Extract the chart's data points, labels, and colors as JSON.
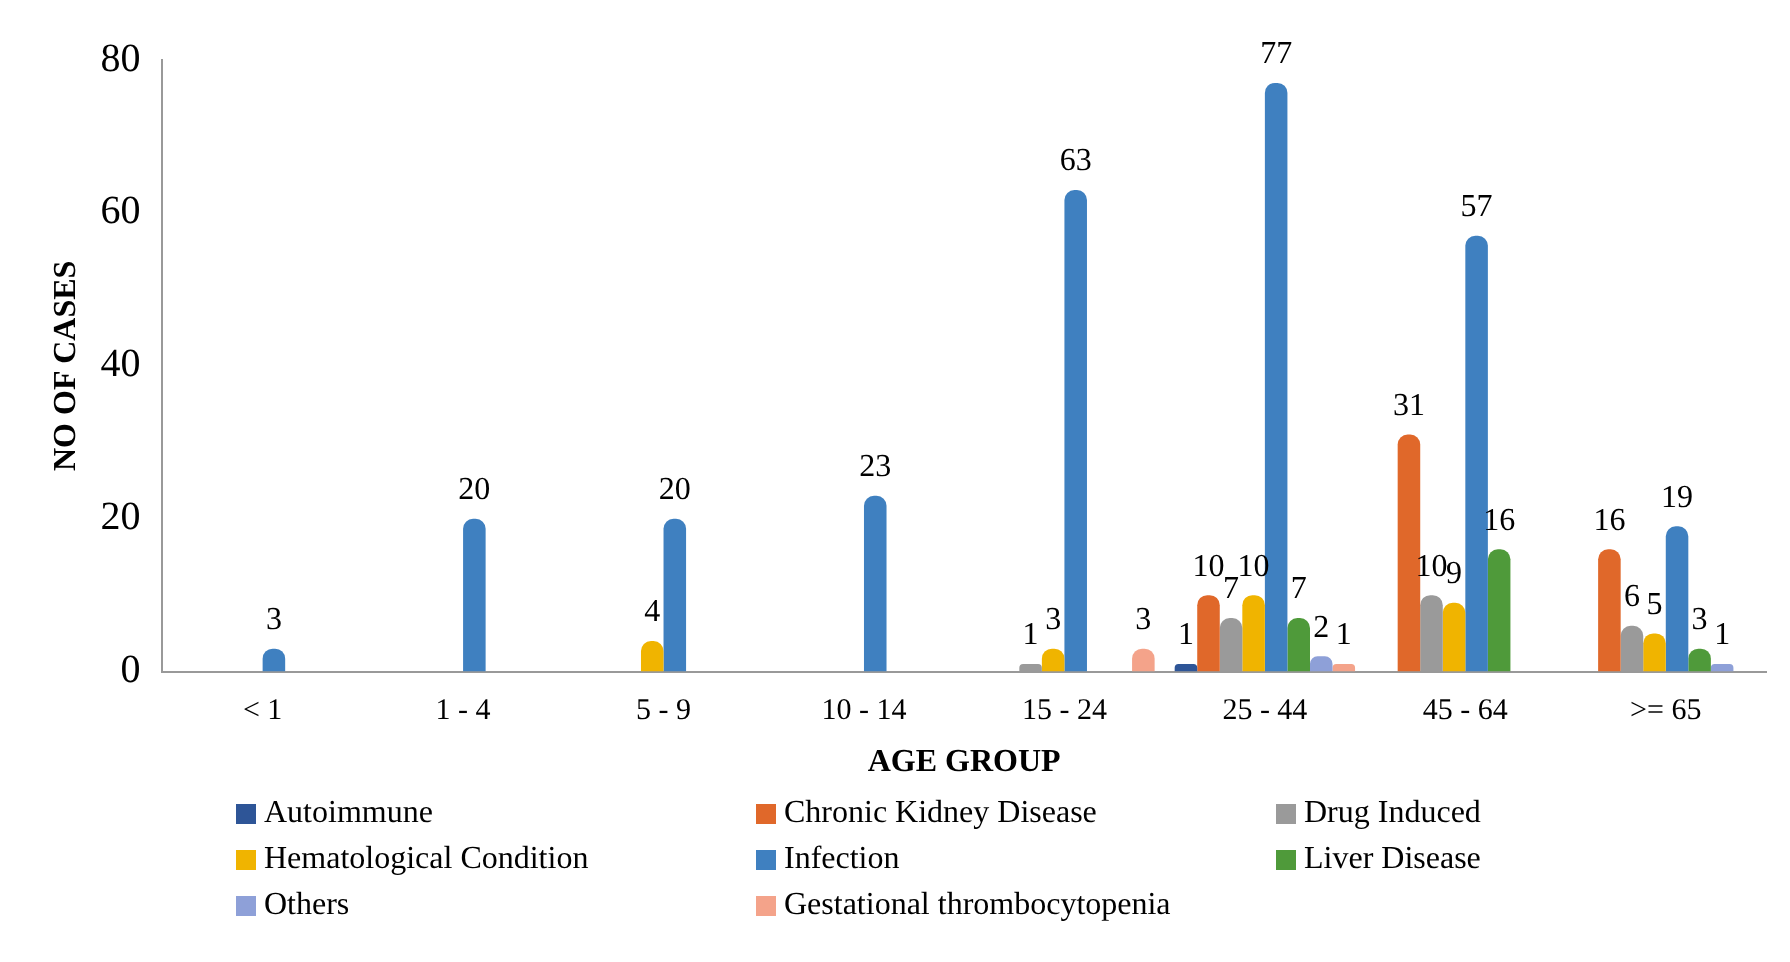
{
  "chart_data": {
    "type": "bar",
    "xlabel": "AGE GROUP",
    "ylabel": "NO OF CASES",
    "categories": [
      "< 1",
      "1 - 4",
      "5 - 9",
      "10 - 14",
      "15 - 24",
      "25 - 44",
      "45 - 64",
      ">= 65"
    ],
    "series": [
      {
        "name": "Autoimmune",
        "color": "#2e5597",
        "values": [
          null,
          null,
          null,
          null,
          null,
          1,
          null,
          null
        ]
      },
      {
        "name": "Chronic Kidney Disease",
        "color": "#e0682a",
        "values": [
          null,
          null,
          null,
          null,
          null,
          10,
          31,
          16
        ]
      },
      {
        "name": "Drug Induced",
        "color": "#9a9a9a",
        "values": [
          null,
          null,
          null,
          null,
          1,
          7,
          10,
          6
        ]
      },
      {
        "name": "Hematological Condition",
        "color": "#f0b400",
        "values": [
          null,
          null,
          4,
          null,
          3,
          10,
          9,
          5
        ]
      },
      {
        "name": "Infection",
        "color": "#3f80c0",
        "values": [
          3,
          20,
          20,
          23,
          63,
          77,
          57,
          19
        ]
      },
      {
        "name": "Liver Disease",
        "color": "#4f9a3a",
        "values": [
          null,
          null,
          null,
          null,
          null,
          7,
          16,
          3
        ]
      },
      {
        "name": "Others",
        "color": "#8ea0d8",
        "values": [
          null,
          null,
          null,
          null,
          null,
          2,
          null,
          1
        ]
      },
      {
        "name": "Gestational thrombocytopenia",
        "color": "#f4a38a",
        "values": [
          null,
          null,
          null,
          null,
          3,
          1,
          null,
          null
        ]
      }
    ],
    "ylim": [
      0,
      80
    ],
    "yticks": [
      0,
      20,
      40,
      60,
      80
    ],
    "grid": false,
    "legend": "bottom",
    "data_labels": true
  }
}
